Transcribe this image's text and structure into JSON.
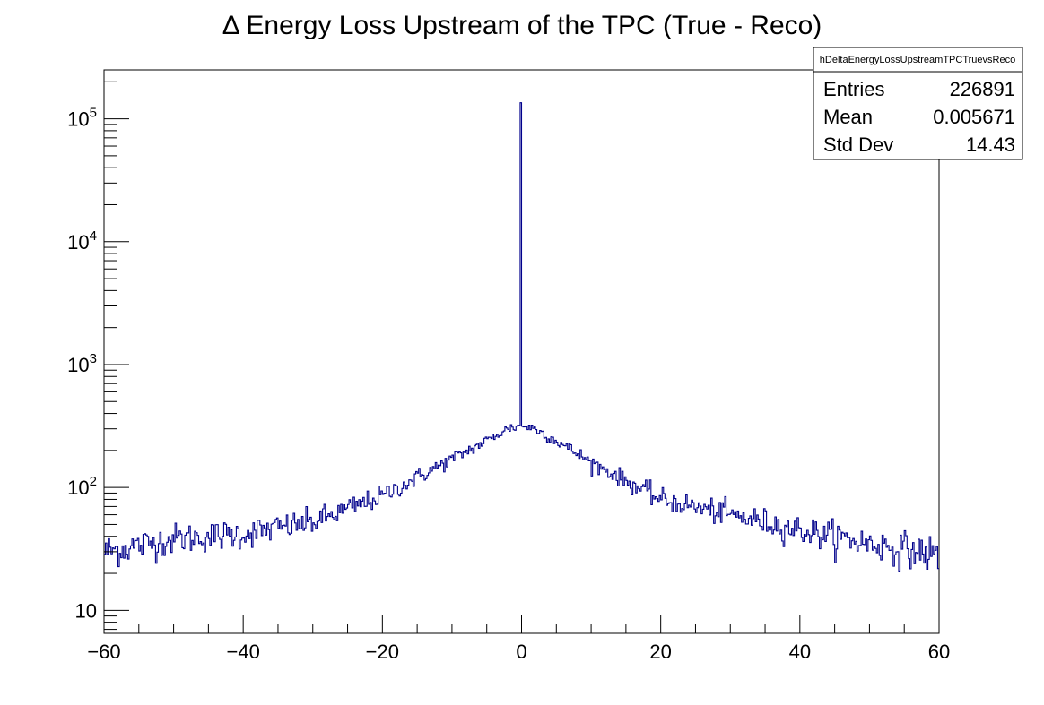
{
  "chart_data": {
    "type": "histogram",
    "title": "Δ Energy Loss Upstream of the TPC (True - Reco)",
    "xlabel": "",
    "ylabel": "",
    "xlim": [
      -60,
      60
    ],
    "ylim": [
      6.5,
      250000
    ],
    "y_scale": "log",
    "grid": false,
    "line_color": "#00008b",
    "x_ticks": [
      "−60",
      "−40",
      "−20",
      "0",
      "20",
      "40",
      "60"
    ],
    "x_tick_values": [
      -60,
      -40,
      -20,
      0,
      20,
      40,
      60
    ],
    "y_ticks": [
      {
        "value": 10,
        "base": "10",
        "exp": ""
      },
      {
        "value": 100,
        "base": "10",
        "exp": "2"
      },
      {
        "value": 1000,
        "base": "10",
        "exp": "3"
      },
      {
        "value": 10000,
        "base": "10",
        "exp": "4"
      },
      {
        "value": 100000,
        "base": "10",
        "exp": "5"
      }
    ],
    "bin_width": 0.2,
    "series": [
      {
        "x_start": -60,
        "bin_width": 0.2,
        "envelope_x": [
          -60,
          -50,
          -40,
          -30,
          -20,
          -10,
          -5,
          -2,
          0,
          2,
          5,
          10,
          20,
          30,
          40,
          50,
          60
        ],
        "envelope_y": [
          30,
          38,
          42,
          52,
          85,
          170,
          240,
          300,
          320,
          300,
          240,
          160,
          80,
          60,
          45,
          35,
          28
        ],
        "spike": {
          "x": 0,
          "y": 135000
        }
      }
    ],
    "stats_box": {
      "name": "hDeltaEnergyLossUpstreamTPCTruevsReco",
      "rows": [
        {
          "label": "Entries",
          "value": "226891"
        },
        {
          "label": "Mean",
          "value": "0.005671"
        },
        {
          "label": "Std Dev",
          "value": "14.43"
        }
      ]
    }
  }
}
